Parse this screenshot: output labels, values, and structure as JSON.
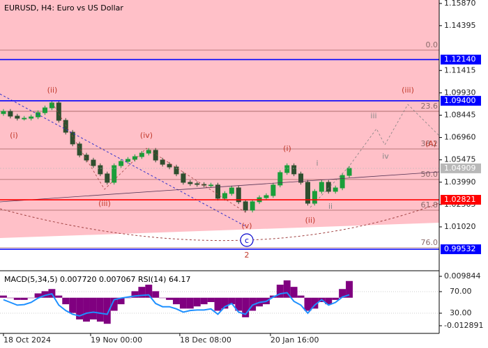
{
  "chart_data": {
    "type": "candlestick",
    "title": "EURUSD, H4:  Euro vs US Dollar",
    "x": [
      0,
      1,
      2,
      3,
      4,
      5,
      6,
      7,
      8,
      9,
      10,
      11,
      12,
      13,
      14,
      15,
      16,
      17,
      18,
      19,
      20,
      21,
      22,
      23,
      24,
      25,
      26,
      27,
      28,
      29,
      30,
      31,
      32,
      33,
      34,
      35,
      36,
      37,
      38,
      39,
      40,
      41,
      42,
      43,
      44,
      45,
      46,
      47,
      48,
      49,
      50
    ],
    "open": [
      1.0855,
      1.087,
      1.0838,
      1.0824,
      1.0824,
      1.0833,
      1.0861,
      1.0893,
      1.0926,
      1.081,
      1.0731,
      1.0653,
      1.0579,
      1.0546,
      1.0509,
      1.0454,
      1.0398,
      1.0509,
      1.0537,
      1.0551,
      1.0569,
      1.0592,
      1.0611,
      1.0546,
      1.0518,
      1.05,
      1.0454,
      1.0398,
      1.0389,
      1.0384,
      1.038,
      1.038,
      1.0292,
      1.0324,
      1.0361,
      1.0269,
      1.0213,
      1.0269,
      1.0296,
      1.031,
      1.038,
      1.0463,
      1.0509,
      1.0454,
      1.0398,
      1.0259,
      1.0338,
      1.0398,
      1.0338,
      1.0361,
      1.0444
    ],
    "high": [
      1.0885,
      1.0885,
      1.0853,
      1.0839,
      1.0848,
      1.0876,
      1.0908,
      1.0941,
      1.0941,
      1.0825,
      1.0746,
      1.0668,
      1.0594,
      1.0561,
      1.0524,
      1.0469,
      1.0524,
      1.0552,
      1.0566,
      1.0584,
      1.0607,
      1.0626,
      1.0626,
      1.0561,
      1.0533,
      1.0515,
      1.0469,
      1.0413,
      1.0404,
      1.0399,
      1.0395,
      1.0395,
      1.0339,
      1.0376,
      1.0376,
      1.0284,
      1.0284,
      1.0311,
      1.0325,
      1.0395,
      1.0478,
      1.0524,
      1.0524,
      1.0469,
      1.0413,
      1.0353,
      1.0413,
      1.0413,
      1.0376,
      1.0459,
      1.0506
    ],
    "low": [
      1.084,
      1.0823,
      1.0809,
      1.0809,
      1.0809,
      1.0818,
      1.0846,
      1.0878,
      1.0795,
      1.0716,
      1.0638,
      1.0564,
      1.0531,
      1.0494,
      1.0439,
      1.0383,
      1.0383,
      1.0494,
      1.0522,
      1.0536,
      1.0554,
      1.0577,
      1.0531,
      1.0503,
      1.0485,
      1.0439,
      1.0383,
      1.0374,
      1.0369,
      1.0365,
      1.0365,
      1.0277,
      1.0277,
      1.0309,
      1.0254,
      1.0198,
      1.0198,
      1.0254,
      1.0281,
      1.0295,
      1.0365,
      1.0448,
      1.0439,
      1.0383,
      1.0244,
      1.0244,
      1.0323,
      1.0323,
      1.0323,
      1.0346,
      1.0429
    ],
    "close": [
      1.087,
      1.0838,
      1.0824,
      1.0824,
      1.0833,
      1.0861,
      1.0893,
      1.0926,
      1.081,
      1.0731,
      1.0653,
      1.0579,
      1.0546,
      1.0509,
      1.0454,
      1.0398,
      1.0509,
      1.0537,
      1.0551,
      1.0569,
      1.0592,
      1.0611,
      1.0546,
      1.0518,
      1.05,
      1.0454,
      1.0398,
      1.0389,
      1.0384,
      1.038,
      1.038,
      1.0292,
      1.0324,
      1.0361,
      1.0269,
      1.0213,
      1.0269,
      1.0296,
      1.031,
      1.038,
      1.0463,
      1.0509,
      1.0454,
      1.0398,
      1.0259,
      1.0338,
      1.0398,
      1.0338,
      1.0361,
      1.0444,
      1.0491
    ],
    "up_color": "#1a9e3a",
    "down_color": "#2f4f2f",
    "xlim": [
      -0.5,
      63
    ],
    "xticks": [
      {
        "value": 0,
        "label": "18 Oct 2024"
      },
      {
        "value": 12.6,
        "label": "19 Nov 00:00"
      },
      {
        "value": 25.5,
        "label": "18 Dec 08:00"
      },
      {
        "value": 38.6,
        "label": "20 Jan 16:00"
      }
    ],
    "ylim": [
      0.9815,
      1.161
    ],
    "yticks": [
      {
        "value": 1.1587,
        "label": "1.15870"
      },
      {
        "value": 1.14395,
        "label": "1.14395"
      },
      {
        "value": 1.11415,
        "label": "1.11415"
      },
      {
        "value": 1.0993,
        "label": "1.09930"
      },
      {
        "value": 1.08445,
        "label": "1.08445"
      },
      {
        "value": 1.0696,
        "label": "1.06960"
      },
      {
        "value": 1.05475,
        "label": "1.05475"
      },
      {
        "value": 1.0399,
        "label": "1.03990"
      },
      {
        "value": 1.02505,
        "label": "1.02505"
      },
      {
        "value": 1.0102,
        "label": "1.01020"
      }
    ],
    "levels": [
      {
        "value": 1.1214,
        "label": "1.12140",
        "color": "#0000ff"
      },
      {
        "value": 1.094,
        "label": "1.09400",
        "color": "#0000ff"
      },
      {
        "value": 1.04909,
        "label": "1.04909",
        "color": "#b8b8b8"
      },
      {
        "value": 1.02821,
        "label": "1.02821",
        "color": "#ff0000"
      },
      {
        "value": 0.99532,
        "label": "0.99532",
        "color": "#0000ff"
      }
    ],
    "fib_levels": [
      {
        "name": "0.0",
        "price": 1.1277
      },
      {
        "name": "23.6",
        "price": 1.087
      },
      {
        "name": "38.2",
        "price": 1.062
      },
      {
        "name": "50.0",
        "price": 1.0417
      },
      {
        "name": "61.8",
        "price": 1.0213
      },
      {
        "name": "76.0",
        "price": 0.9963
      }
    ],
    "annotations": [
      {
        "text": "(i)",
        "color": "#c0392b"
      },
      {
        "text": "(ii)",
        "color": "#c0392b"
      },
      {
        "text": "(iii)",
        "color": "#c0392b"
      },
      {
        "text": "(iv)",
        "color": "#c0392b"
      },
      {
        "text": "(v)",
        "color": "#c0392b"
      },
      {
        "text": "(i)",
        "color": "#c0392b"
      },
      {
        "text": "(ii)",
        "color": "#c0392b"
      },
      {
        "text": "i",
        "color": "#888888"
      },
      {
        "text": "ii",
        "color": "#888888"
      },
      {
        "text": "iii",
        "color": "#888888"
      },
      {
        "text": "iv",
        "color": "#888888"
      },
      {
        "text": "(iii)",
        "color": "#c0392b"
      },
      {
        "text": "c",
        "color": "#0000cc"
      },
      {
        "text": "2",
        "color": "#c0392b"
      },
      {
        "text": "(A)",
        "color": "#c0392b"
      }
    ],
    "indicator": {
      "title": "MACD(5,34,5) 0.007720 0.007067 RSI(14) 64.17",
      "macd": [
        0.001,
        0.0,
        -0.001,
        -0.001,
        0.0,
        0.002,
        0.003,
        0.004,
        0.001,
        -0.003,
        -0.007,
        -0.01,
        -0.011,
        -0.01,
        -0.011,
        -0.012,
        -0.006,
        -0.003,
        0.0,
        0.003,
        0.005,
        0.006,
        0.003,
        0.0,
        -0.001,
        -0.003,
        -0.005,
        -0.005,
        -0.004,
        -0.003,
        -0.002,
        -0.006,
        -0.005,
        -0.003,
        -0.006,
        -0.009,
        -0.006,
        -0.004,
        -0.003,
        0.001,
        0.006,
        0.008,
        0.005,
        0.001,
        -0.006,
        -0.005,
        -0.002,
        -0.003,
        -0.001,
        0.004,
        0.0077
      ],
      "macd_color": "#800080",
      "macd_ylim": [
        -0.0161,
        0.0121
      ],
      "macd_ticks": [
        0.009844,
        -0.012891
      ],
      "rsi": [
        55,
        50,
        45,
        46,
        50,
        58,
        63,
        66,
        45,
        35,
        28,
        25,
        30,
        32,
        30,
        28,
        55,
        58,
        60,
        62,
        63,
        64,
        48,
        42,
        42,
        38,
        32,
        35,
        36,
        36,
        38,
        28,
        42,
        48,
        32,
        28,
        45,
        50,
        52,
        60,
        66,
        68,
        52,
        45,
        30,
        45,
        55,
        45,
        50,
        60,
        64.17
      ],
      "rsi_color": "#1e90ff",
      "rsi_ylim": [
        -6.1,
        107.4
      ],
      "rsi_ticks": [
        {
          "value": 70,
          "label": "70.00"
        },
        {
          "value": 30,
          "label": "30.00"
        }
      ]
    }
  }
}
